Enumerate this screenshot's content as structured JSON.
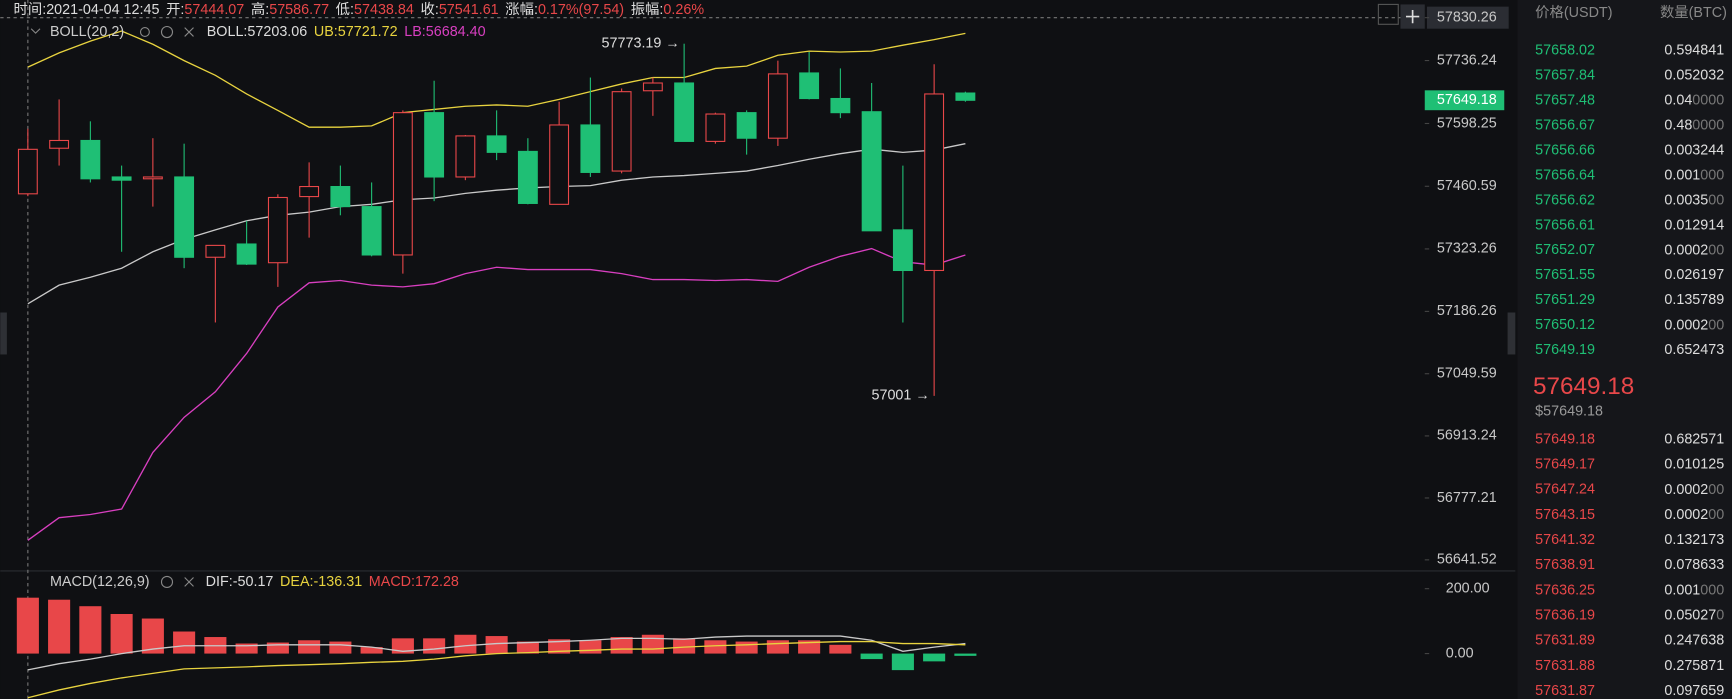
{
  "header": {
    "time_label": "时间:",
    "time": "2021-04-04 12:45",
    "open_label": "开:",
    "open": "57444.07",
    "high_label": "高:",
    "high": "57586.77",
    "low_label": "低:",
    "low": "57438.84",
    "close_label": "收:",
    "close": "57541.61",
    "change_label": "涨幅:",
    "change": "0.17%(97.54)",
    "amplitude_label": "振幅:",
    "amplitude": "0.26%"
  },
  "chart": {
    "type": "candlestick",
    "up_color": "#e84749",
    "down_color": "#1fbf75",
    "ylim": [
      56641.52,
      57830.26
    ],
    "yticks": [
      57830.26,
      57736.24,
      57598.25,
      57460.59,
      57323.26,
      57186.26,
      57049.59,
      56913.24,
      56777.21,
      56641.52
    ],
    "last_price": 57649.18,
    "candles": {
      "open": [
        57444.07,
        57544,
        57561,
        57481,
        57477,
        57481,
        57305,
        57334,
        57293,
        57438,
        57460,
        57416,
        57310,
        57622,
        57481,
        57571,
        57537,
        57421,
        57595,
        57494,
        57670,
        57687,
        57559,
        57622,
        57566,
        57709,
        57653,
        57624,
        57365,
        57276,
        57665
      ],
      "high": [
        57586.77,
        57651,
        57603,
        57506,
        57566,
        57554,
        57331,
        57385,
        57443,
        57513,
        57506,
        57469,
        57627,
        57692,
        57573,
        57627,
        57566,
        57646,
        57699,
        57675,
        57699,
        57773.19,
        57622,
        57627,
        57736,
        57755,
        57719,
        57687,
        57506,
        57728,
        57668
      ],
      "low": [
        57438.84,
        57506,
        57469,
        57317,
        57416,
        57281,
        57162,
        57288,
        57240,
        57348,
        57397,
        57307,
        57269,
        57428,
        57474,
        57518,
        57421,
        57421,
        57481,
        57489,
        57615,
        57559,
        57554,
        57530,
        57549,
        57651,
        57610,
        57363,
        57162,
        57001,
        57646
      ],
      "close": [
        57541.61,
        57561,
        57477,
        57474,
        57481,
        57305,
        57331,
        57290,
        57436,
        57460,
        57416,
        57310,
        57622,
        57481,
        57571,
        57535,
        57423,
        57595,
        57491,
        57668,
        57687,
        57559,
        57619,
        57566,
        57707,
        57653,
        57622,
        57363,
        57276,
        57663,
        57649.18
      ]
    },
    "high_annotation": "57773.19 →",
    "low_annotation": "57001 →",
    "boll": {
      "label": "BOLL(20,2)",
      "mid_label": "BOLL:",
      "mid_value": "57203.06",
      "upper_label": "UB:",
      "upper_value": "57721.72",
      "lower_label": "LB:",
      "lower_value": "56684.40",
      "mid_color": "#c9c9c9",
      "upper_color": "#e8d33f",
      "lower_color": "#d83fc0",
      "upper": [
        57721.72,
        57753,
        57779,
        57801,
        57772,
        57736,
        57704,
        57663,
        57627,
        57590,
        57590,
        57593,
        57622,
        57629,
        57636,
        57639,
        57636,
        57651,
        57668,
        57685,
        57699,
        57699,
        57719,
        57724,
        57748,
        57757,
        57755,
        57757,
        57770,
        57782,
        57796
      ],
      "mid": [
        57203.06,
        57244,
        57261,
        57281,
        57317,
        57344,
        57365,
        57385,
        57397,
        57404,
        57416,
        57421,
        57431,
        57435,
        57445,
        57452,
        57457,
        57460,
        57462,
        57474,
        57481,
        57484,
        57489,
        57494,
        57506,
        57520,
        57532,
        57542,
        57535,
        57540,
        57554
      ],
      "lower": [
        56684.4,
        56734,
        56741,
        56753,
        56877,
        56954,
        57010,
        57094,
        57196,
        57249,
        57254,
        57244,
        57240,
        57247,
        57269,
        57283,
        57278,
        57278,
        57278,
        57269,
        57256,
        57256,
        57254,
        57256,
        57252,
        57283,
        57307,
        57324,
        57295,
        57288,
        57310
      ]
    },
    "macd": {
      "label": "MACD(12,26,9)",
      "dif_label": "DIF:",
      "dif_value": "-50.17",
      "dea_label": "DEA:",
      "dea_value": "-136.31",
      "hist_label": "MACD:",
      "hist_value": "172.28",
      "ylim": [
        -140,
        248
      ],
      "yticks": [
        {
          "value": 200,
          "label": "200.00"
        },
        {
          "value": 0,
          "label": "0.00"
        }
      ],
      "dif_color": "#c9c9c9",
      "dea_color": "#e8d33f",
      "hist": [
        172.28,
        166,
        146,
        122,
        108,
        68,
        51,
        31,
        34,
        41,
        37,
        20,
        47,
        47,
        58,
        54,
        37,
        44,
        41,
        51,
        58,
        47,
        41,
        37,
        41,
        41,
        27,
        -17,
        -51,
        -24,
        -7
      ],
      "dif": [
        -50.17,
        -31,
        -17,
        0,
        14,
        24,
        24,
        24,
        27,
        27,
        27,
        20,
        7,
        14,
        24,
        31,
        34,
        37,
        41,
        47,
        47,
        44,
        51,
        54,
        54,
        54,
        54,
        41,
        7,
        20,
        31
      ],
      "dea": [
        -136.31,
        -112,
        -92,
        -75,
        -61,
        -47,
        -44,
        -41,
        -37,
        -34,
        -31,
        -27,
        -24,
        -17,
        -7,
        0,
        3,
        7,
        10,
        14,
        14,
        20,
        24,
        27,
        31,
        34,
        37,
        37,
        31,
        31,
        27
      ]
    }
  },
  "order_book": {
    "price_header": "价格(USDT)",
    "qty_header": "数量(BTC)",
    "asks": [
      [
        "57658.02",
        "0.594841"
      ],
      [
        "57657.84",
        "0.052032"
      ],
      [
        "57657.48",
        "0.040000"
      ],
      [
        "57656.67",
        "0.480000"
      ],
      [
        "57656.66",
        "0.003244"
      ],
      [
        "57656.64",
        "0.001000"
      ],
      [
        "57656.62",
        "0.003500"
      ],
      [
        "57656.61",
        "0.012914"
      ],
      [
        "57652.07",
        "0.000200"
      ],
      [
        "57651.55",
        "0.026197"
      ],
      [
        "57651.29",
        "0.135789"
      ],
      [
        "57650.12",
        "0.000200"
      ],
      [
        "57649.19",
        "0.652473"
      ]
    ],
    "last": "57649.18",
    "last_usd": "$57649.18",
    "bids": [
      [
        "57649.18",
        "0.682571"
      ],
      [
        "57649.17",
        "0.010125"
      ],
      [
        "57647.24",
        "0.000200"
      ],
      [
        "57643.15",
        "0.000200"
      ],
      [
        "57641.32",
        "0.132173"
      ],
      [
        "57638.91",
        "0.078633"
      ],
      [
        "57636.25",
        "0.001000"
      ],
      [
        "57636.19",
        "0.050270"
      ],
      [
        "57631.89",
        "0.247638"
      ],
      [
        "57631.88",
        "0.275871"
      ],
      [
        "57631.87",
        "0.097659"
      ]
    ]
  }
}
